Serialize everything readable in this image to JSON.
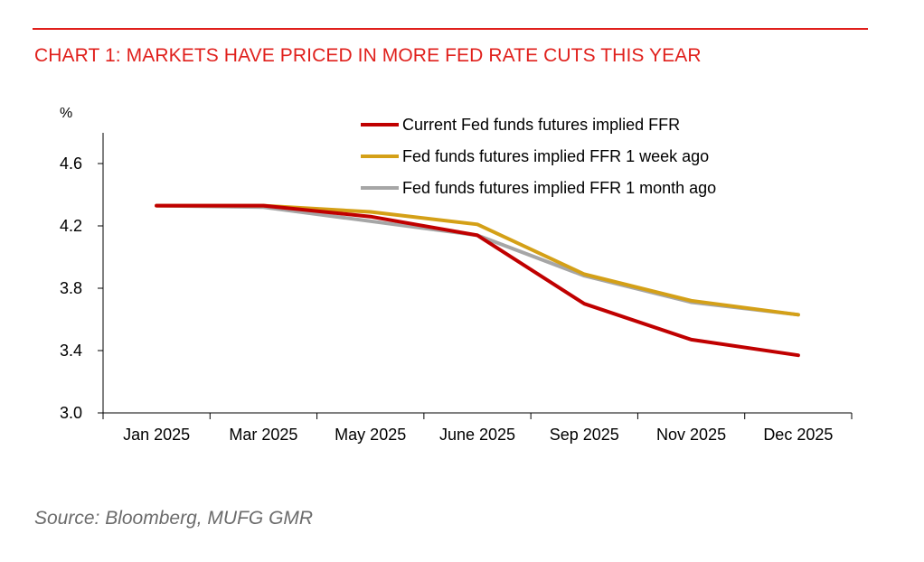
{
  "title": "CHART 1: MARKETS HAVE PRICED IN MORE FED RATE CUTS THIS YEAR",
  "source": "Source: Bloomberg, MUFG GMR",
  "colors": {
    "accent": "#e0201c",
    "current": "#c00000",
    "week_ago": "#d4a017",
    "month_ago": "#a6a6a6"
  },
  "chart_data": {
    "type": "line",
    "title": "CHART 1: MARKETS HAVE PRICED IN MORE FED RATE CUTS THIS YEAR",
    "ylabel": "%",
    "xlabel": "",
    "categories": [
      "Jan 2025",
      "Mar 2025",
      "May 2025",
      "June 2025",
      "Sep 2025",
      "Nov 2025",
      "Dec 2025"
    ],
    "yticks": [
      "4.6",
      "4.2",
      "3.8",
      "3.4",
      "3.0"
    ],
    "ylim": [
      3.0,
      4.8
    ],
    "grid": false,
    "legend_position": "top-right",
    "series": [
      {
        "name": "Current Fed funds futures implied FFR",
        "color": "#c00000",
        "values": [
          4.33,
          4.33,
          4.26,
          4.14,
          3.7,
          3.47,
          3.37
        ]
      },
      {
        "name": "Fed funds futures implied FFR 1 week ago",
        "color": "#d4a017",
        "values": [
          4.33,
          4.33,
          4.29,
          4.21,
          3.89,
          3.72,
          3.63
        ]
      },
      {
        "name": "Fed funds futures implied FFR 1 month ago",
        "color": "#a6a6a6",
        "values": [
          4.33,
          4.32,
          4.23,
          4.14,
          3.88,
          3.71,
          3.63
        ]
      }
    ]
  }
}
